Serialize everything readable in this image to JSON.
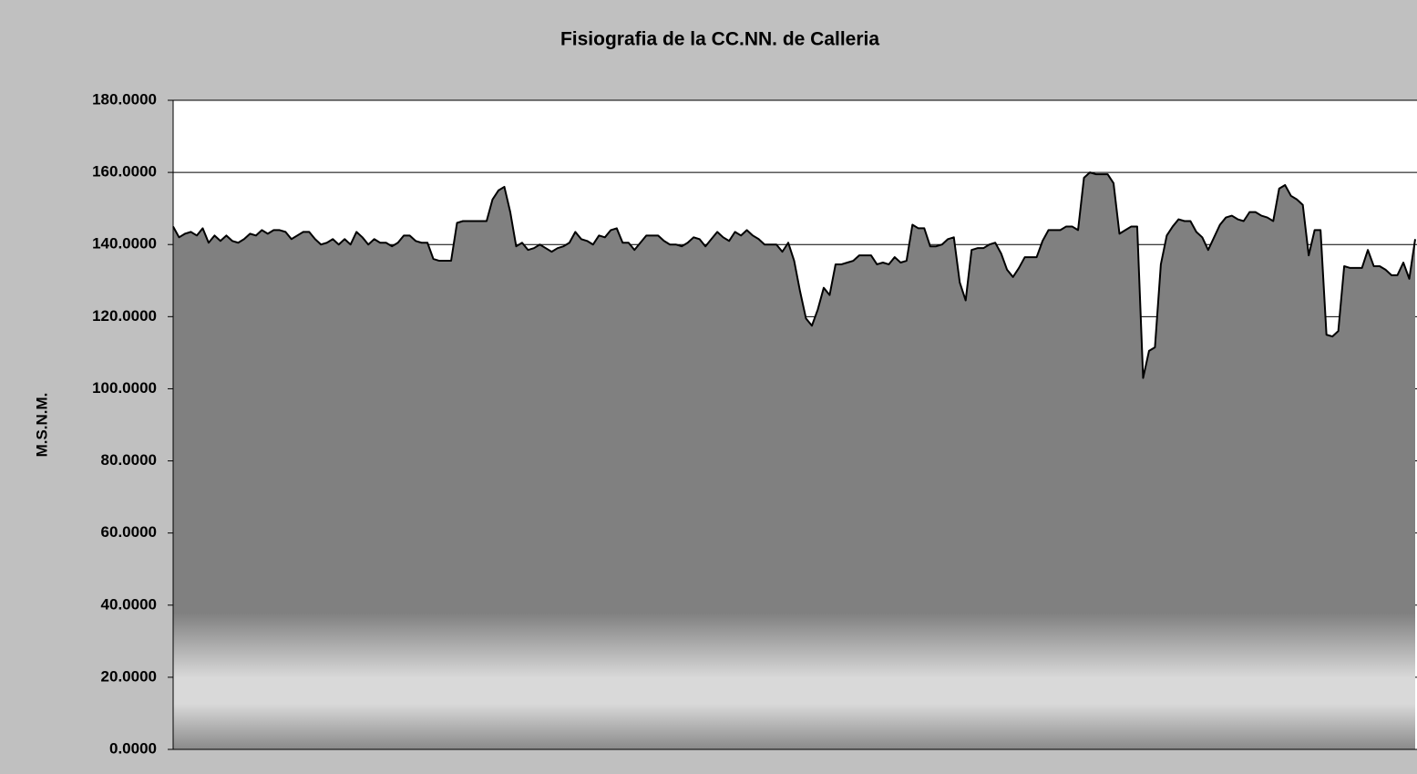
{
  "chart_data": {
    "type": "area",
    "title": "Fisiografia de la CC.NN. de Calleria",
    "y_label": "M.S.N.M.",
    "color": "#808080",
    "line_color": "#000000",
    "grid": true,
    "ylim": [
      0,
      180
    ],
    "yticks": [
      {
        "value": 0,
        "label": "0.0000"
      },
      {
        "value": 20,
        "label": "20.0000"
      },
      {
        "value": 40,
        "label": "40.0000"
      },
      {
        "value": 60,
        "label": "60.0000"
      },
      {
        "value": 80,
        "label": "80.0000"
      },
      {
        "value": 100,
        "label": "100.0000"
      },
      {
        "value": 120,
        "label": "120.0000"
      },
      {
        "value": 140,
        "label": "140.0000"
      },
      {
        "value": 160,
        "label": "160.0000"
      },
      {
        "value": 180,
        "label": "180.0000"
      }
    ],
    "values": [
      145,
      142,
      143,
      143.5,
      142.5,
      144.5,
      140.5,
      142.5,
      141,
      142.5,
      141,
      140.5,
      141.5,
      143,
      142.5,
      144,
      143,
      144,
      144,
      143.5,
      141.5,
      142.5,
      143.5,
      143.5,
      141.5,
      140,
      140.5,
      141.5,
      140,
      141.5,
      140,
      143.5,
      142,
      140,
      141.5,
      140.5,
      140.5,
      139.5,
      140.5,
      142.5,
      142.5,
      141,
      140.5,
      140.5,
      136,
      135.5,
      135.5,
      135.5,
      146,
      146.5,
      146.5,
      146.5,
      146.5,
      146.5,
      152.5,
      155,
      156,
      149,
      139.5,
      140.5,
      138.5,
      139,
      140,
      139,
      138,
      139,
      139.5,
      140.5,
      143.5,
      141.5,
      141,
      140,
      142.5,
      142,
      144,
      144.5,
      140.5,
      140.5,
      138.5,
      140.5,
      142.5,
      142.5,
      142.5,
      141,
      140,
      140,
      139.5,
      140.5,
      142,
      141.5,
      139.5,
      141.5,
      143.5,
      142,
      141,
      143.5,
      142.5,
      144,
      142.5,
      141.5,
      140,
      140,
      140,
      138,
      140.5,
      135.5,
      127,
      119.5,
      117.5,
      122,
      128,
      126,
      134.5,
      134.5,
      135,
      135.5,
      137,
      137,
      137,
      134.5,
      135,
      134.5,
      136.5,
      135,
      135.5,
      145.5,
      144.5,
      144.5,
      139.5,
      139.5,
      140,
      141.5,
      142,
      129.5,
      124.5,
      138.5,
      139,
      139,
      140,
      140.5,
      137.5,
      133,
      131,
      133.5,
      136.5,
      136.5,
      136.5,
      141,
      144,
      144,
      144,
      145,
      145,
      144,
      158.5,
      160,
      159.5,
      159.5,
      159.5,
      157,
      143,
      144,
      145,
      145,
      103,
      110.5,
      111.5,
      134.5,
      142.5,
      145,
      147,
      146.5,
      146.5,
      143.5,
      142,
      138.5,
      142,
      145.5,
      147.5,
      148,
      147,
      146.5,
      149,
      149,
      148,
      147.5,
      146.5,
      155.5,
      156.5,
      153.5,
      152.5,
      151,
      137,
      144,
      144,
      115,
      114.5,
      116,
      134,
      133.5,
      133.5,
      133.5,
      138.5,
      134,
      134,
      133,
      131.5,
      131.5,
      135,
      130.5,
      141.5
    ]
  }
}
